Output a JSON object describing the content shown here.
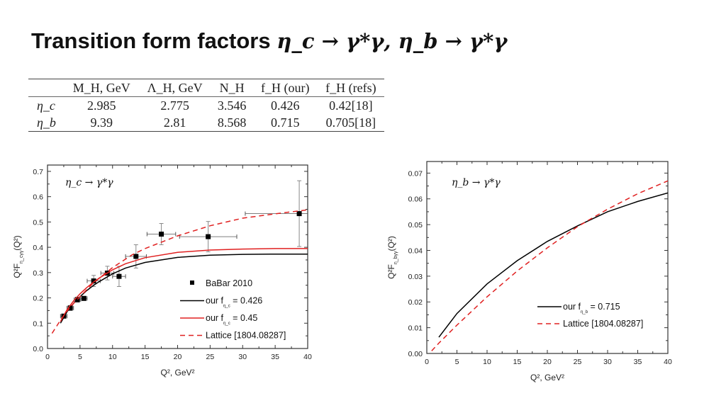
{
  "title": {
    "text": "Transition form factors",
    "math": "η_c → γ*γ, η_b → γ*γ"
  },
  "table": {
    "headers": [
      "",
      "M_H, GeV",
      "Λ_H, GeV",
      "N_H",
      "f_H (our)",
      "f_H (refs)"
    ],
    "rows": [
      [
        "η_c",
        "2.985",
        "2.775",
        "3.546",
        "0.426",
        "0.42[18]"
      ],
      [
        "η_b",
        "9.39",
        "2.81",
        "8.568",
        "0.715",
        "0.705[18]"
      ]
    ]
  },
  "chart_data": [
    {
      "type": "line",
      "annotation": "η_c → γ*γ",
      "xlabel": "Q², GeV²",
      "ylabel": "Q²F_{η_cγγ}(Q²)",
      "ylabel_parts": {
        "main": "Q²F",
        "sub": "η_cγγ",
        "tail": "(Q²)"
      },
      "xlim": [
        0,
        40
      ],
      "ylim": [
        0,
        0.725
      ],
      "xticks": [
        "0",
        "5",
        "10",
        "15",
        "20",
        "25",
        "30",
        "35",
        "40"
      ],
      "yticks": [
        "0.0",
        "0.1",
        "0.2",
        "0.3",
        "0.4",
        "0.5",
        "0.6",
        "0.7"
      ],
      "legend_position": "bottom-right",
      "grid": false,
      "series": [
        {
          "name": "BaBar 2010",
          "kind": "scatter",
          "color": "#000000",
          "x": [
            2.5,
            3.5,
            4.6,
            5.6,
            7.1,
            9.2,
            11.0,
            13.6,
            17.5,
            24.7,
            38.7
          ],
          "y": [
            0.128,
            0.16,
            0.193,
            0.198,
            0.267,
            0.298,
            0.285,
            0.364,
            0.452,
            0.442,
            0.533
          ],
          "yerr": [
            0.008,
            0.01,
            0.01,
            0.008,
            0.022,
            0.027,
            0.04,
            0.046,
            0.042,
            0.06,
            0.13
          ],
          "xerr": [
            0.5,
            0.5,
            0.5,
            0.5,
            1.0,
            1.0,
            1.0,
            1.6,
            2.2,
            4.4,
            8.3
          ]
        },
        {
          "name": "our f = 0.426",
          "legend_label": {
            "pre": "our f",
            "sub": "η_c",
            "post": " = 0.426"
          },
          "kind": "line",
          "color": "#000000",
          "dash": false,
          "x": [
            2,
            3,
            4,
            5,
            6,
            7,
            8,
            10,
            12,
            15,
            20,
            25,
            30,
            35,
            40
          ],
          "y": [
            0.1,
            0.145,
            0.178,
            0.205,
            0.228,
            0.248,
            0.265,
            0.295,
            0.318,
            0.34,
            0.36,
            0.369,
            0.372,
            0.373,
            0.373
          ]
        },
        {
          "name": "our f = 0.45",
          "legend_label": {
            "pre": "our f",
            "sub": "η_c",
            "post": " = 0.45"
          },
          "kind": "line",
          "color": "#e02020",
          "dash": false,
          "x": [
            2,
            3,
            4,
            5,
            6,
            7,
            8,
            10,
            12,
            15,
            20,
            25,
            30,
            35,
            40
          ],
          "y": [
            0.106,
            0.153,
            0.188,
            0.216,
            0.24,
            0.261,
            0.279,
            0.311,
            0.335,
            0.359,
            0.38,
            0.389,
            0.393,
            0.395,
            0.395
          ]
        },
        {
          "name": "Lattice [1804.08287]",
          "legend_label": {
            "pre": "Lattice [1804.08287]",
            "sub": "",
            "post": ""
          },
          "kind": "line",
          "color": "#e02020",
          "dash": true,
          "x": [
            0.7,
            2,
            3,
            4,
            5,
            7,
            10,
            13,
            15,
            20,
            25,
            30,
            35,
            40
          ],
          "y": [
            0.06,
            0.112,
            0.148,
            0.178,
            0.205,
            0.258,
            0.32,
            0.37,
            0.395,
            0.445,
            0.485,
            0.515,
            0.532,
            0.548
          ]
        }
      ]
    },
    {
      "type": "line",
      "annotation": "η_b → γ*γ",
      "xlabel": "Q², GeV²",
      "ylabel": "Q²F_{η_bγγ}(Q²)",
      "ylabel_parts": {
        "main": "Q²F",
        "sub": "η_bγγ",
        "tail": "(Q²)"
      },
      "xlim": [
        0,
        40
      ],
      "ylim": [
        0,
        0.0745
      ],
      "xticks": [
        "0",
        "5",
        "10",
        "15",
        "20",
        "25",
        "30",
        "35",
        "40"
      ],
      "yticks": [
        "0.00",
        "0.01",
        "0.02",
        "0.03",
        "0.04",
        "0.05",
        "0.06",
        "0.07"
      ],
      "legend_position": "bottom-right",
      "grid": false,
      "series": [
        {
          "name": "our f = 0.715",
          "legend_label": {
            "pre": "our f",
            "sub": "η_b",
            "post": " = 0.715"
          },
          "kind": "line",
          "color": "#000000",
          "dash": false,
          "x": [
            2,
            5,
            10,
            15,
            20,
            25,
            30,
            35,
            40
          ],
          "y": [
            0.0063,
            0.0155,
            0.027,
            0.036,
            0.0435,
            0.0495,
            0.055,
            0.059,
            0.0623
          ]
        },
        {
          "name": "Lattice [1804.08287]",
          "legend_label": {
            "pre": "Lattice [1804.08287]",
            "sub": "",
            "post": ""
          },
          "kind": "line",
          "color": "#e02020",
          "dash": true,
          "x": [
            0.8,
            2,
            5,
            10,
            15,
            20,
            25,
            30,
            35,
            40
          ],
          "y": [
            0.001,
            0.004,
            0.011,
            0.022,
            0.032,
            0.041,
            0.0492,
            0.056,
            0.062,
            0.067
          ]
        }
      ]
    }
  ]
}
